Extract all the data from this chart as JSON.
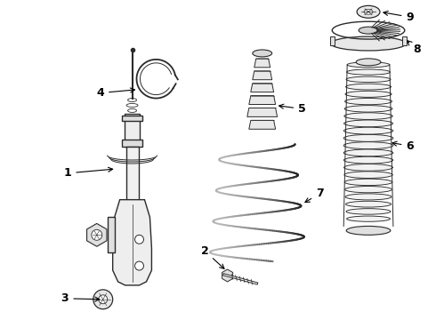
{
  "background_color": "#ffffff",
  "line_color": "#2a2a2a",
  "label_color": "#000000",
  "figure_width": 4.9,
  "figure_height": 3.6,
  "dpi": 100,
  "part_linewidth": 1.0,
  "label_fontsize": 9
}
